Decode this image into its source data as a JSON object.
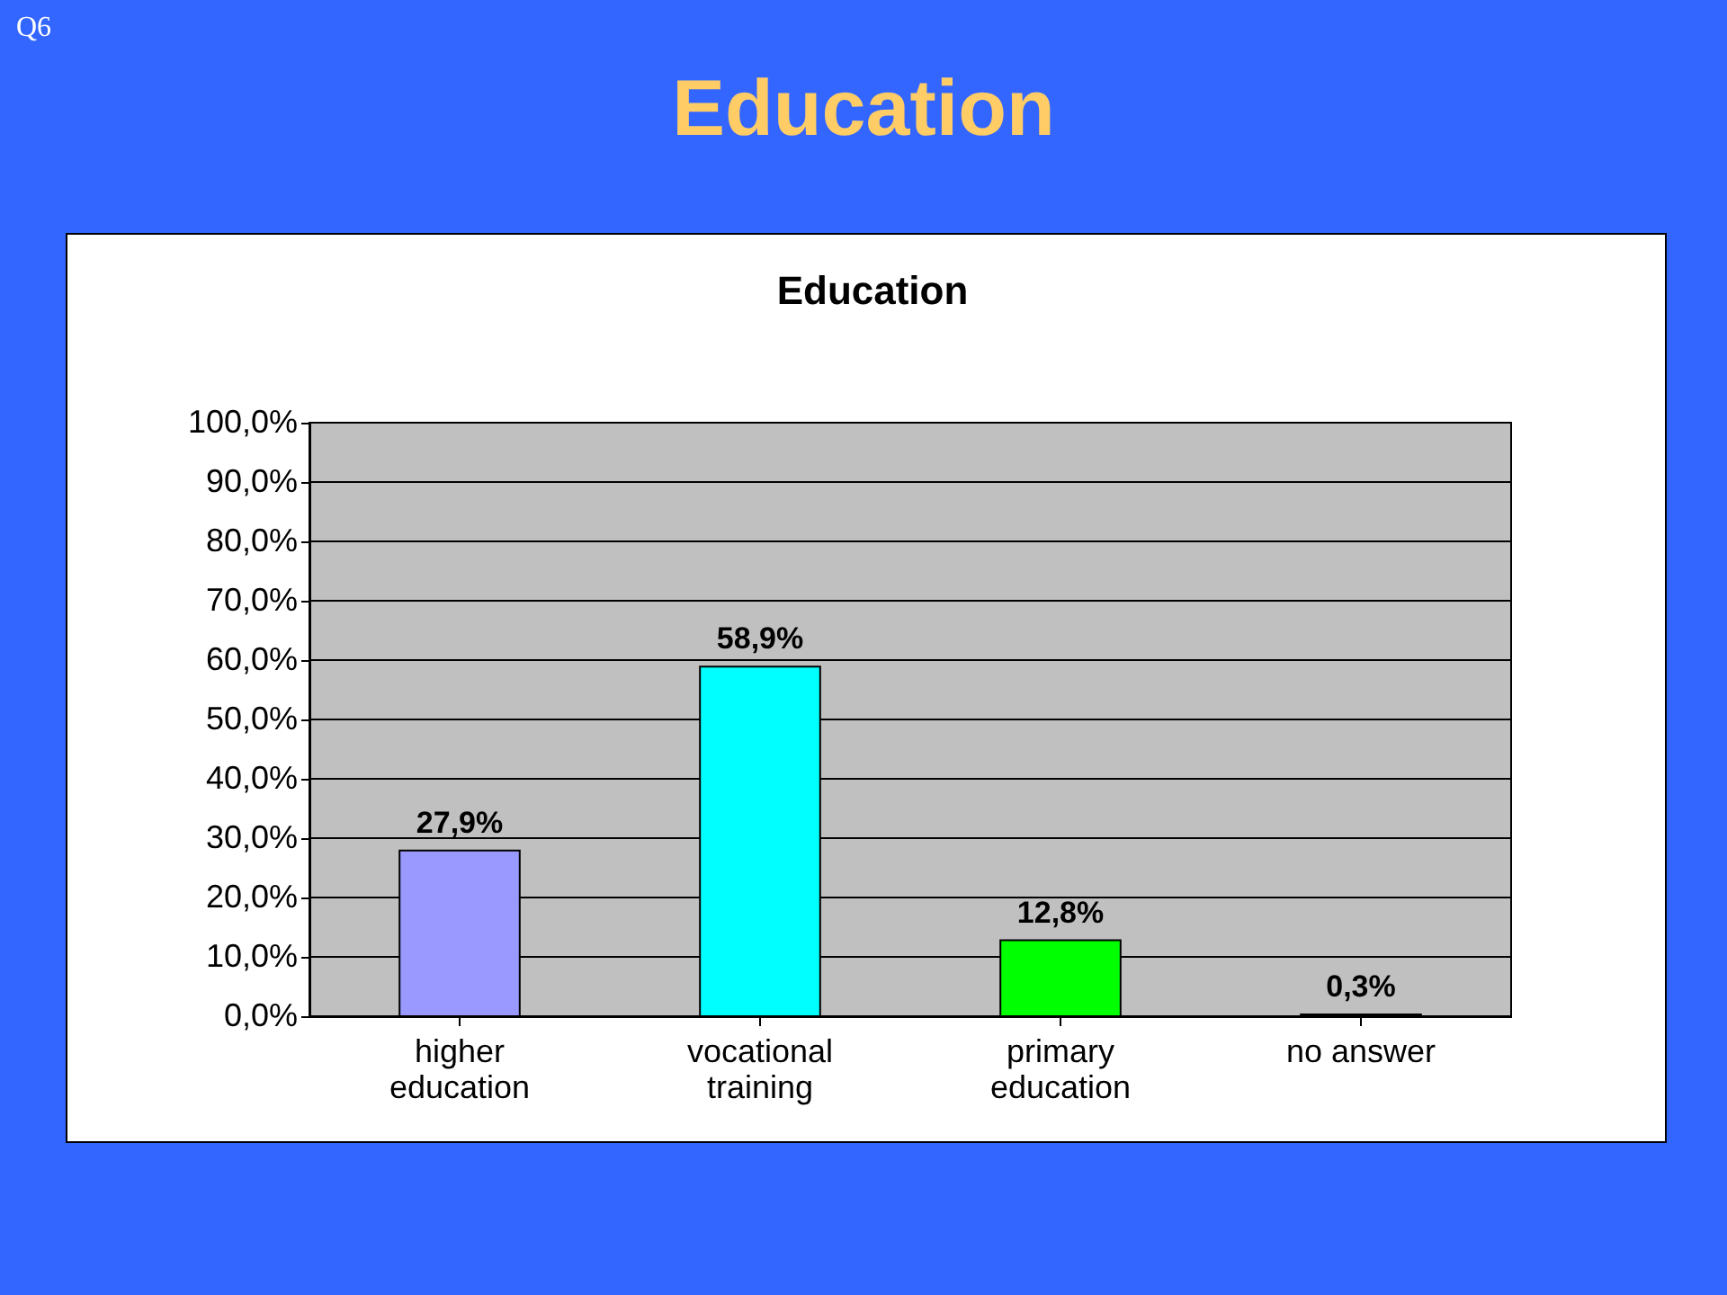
{
  "chart_data": {
    "type": "bar",
    "title": "Education",
    "subtitle": "Education",
    "annotations": [
      "Q6"
    ],
    "categories": [
      "higher education",
      "vocational training",
      "primary education",
      "no answer"
    ],
    "values": [
      27.9,
      58.9,
      12.8,
      0.3
    ],
    "colors": [
      "#9999ff",
      "#00ffff",
      "#00ff00",
      "#9966cc"
    ],
    "value_labels": [
      "27,9%",
      "58,9%",
      "12,8%",
      "0,3%"
    ],
    "ylim": [
      0,
      100
    ],
    "yticks": [
      {
        "value": 0,
        "label": "0,0%"
      },
      {
        "value": 10,
        "label": "10,0%"
      },
      {
        "value": 20,
        "label": "20,0%"
      },
      {
        "value": 30,
        "label": "30,0%"
      },
      {
        "value": 40,
        "label": "40,0%"
      },
      {
        "value": 50,
        "label": "50,0%"
      },
      {
        "value": 60,
        "label": "60,0%"
      },
      {
        "value": 70,
        "label": "70,0%"
      },
      {
        "value": 80,
        "label": "80,0%"
      },
      {
        "value": 90,
        "label": "90,0%"
      },
      {
        "value": 100,
        "label": "100,0%"
      }
    ],
    "grid": "y",
    "legend": false
  }
}
